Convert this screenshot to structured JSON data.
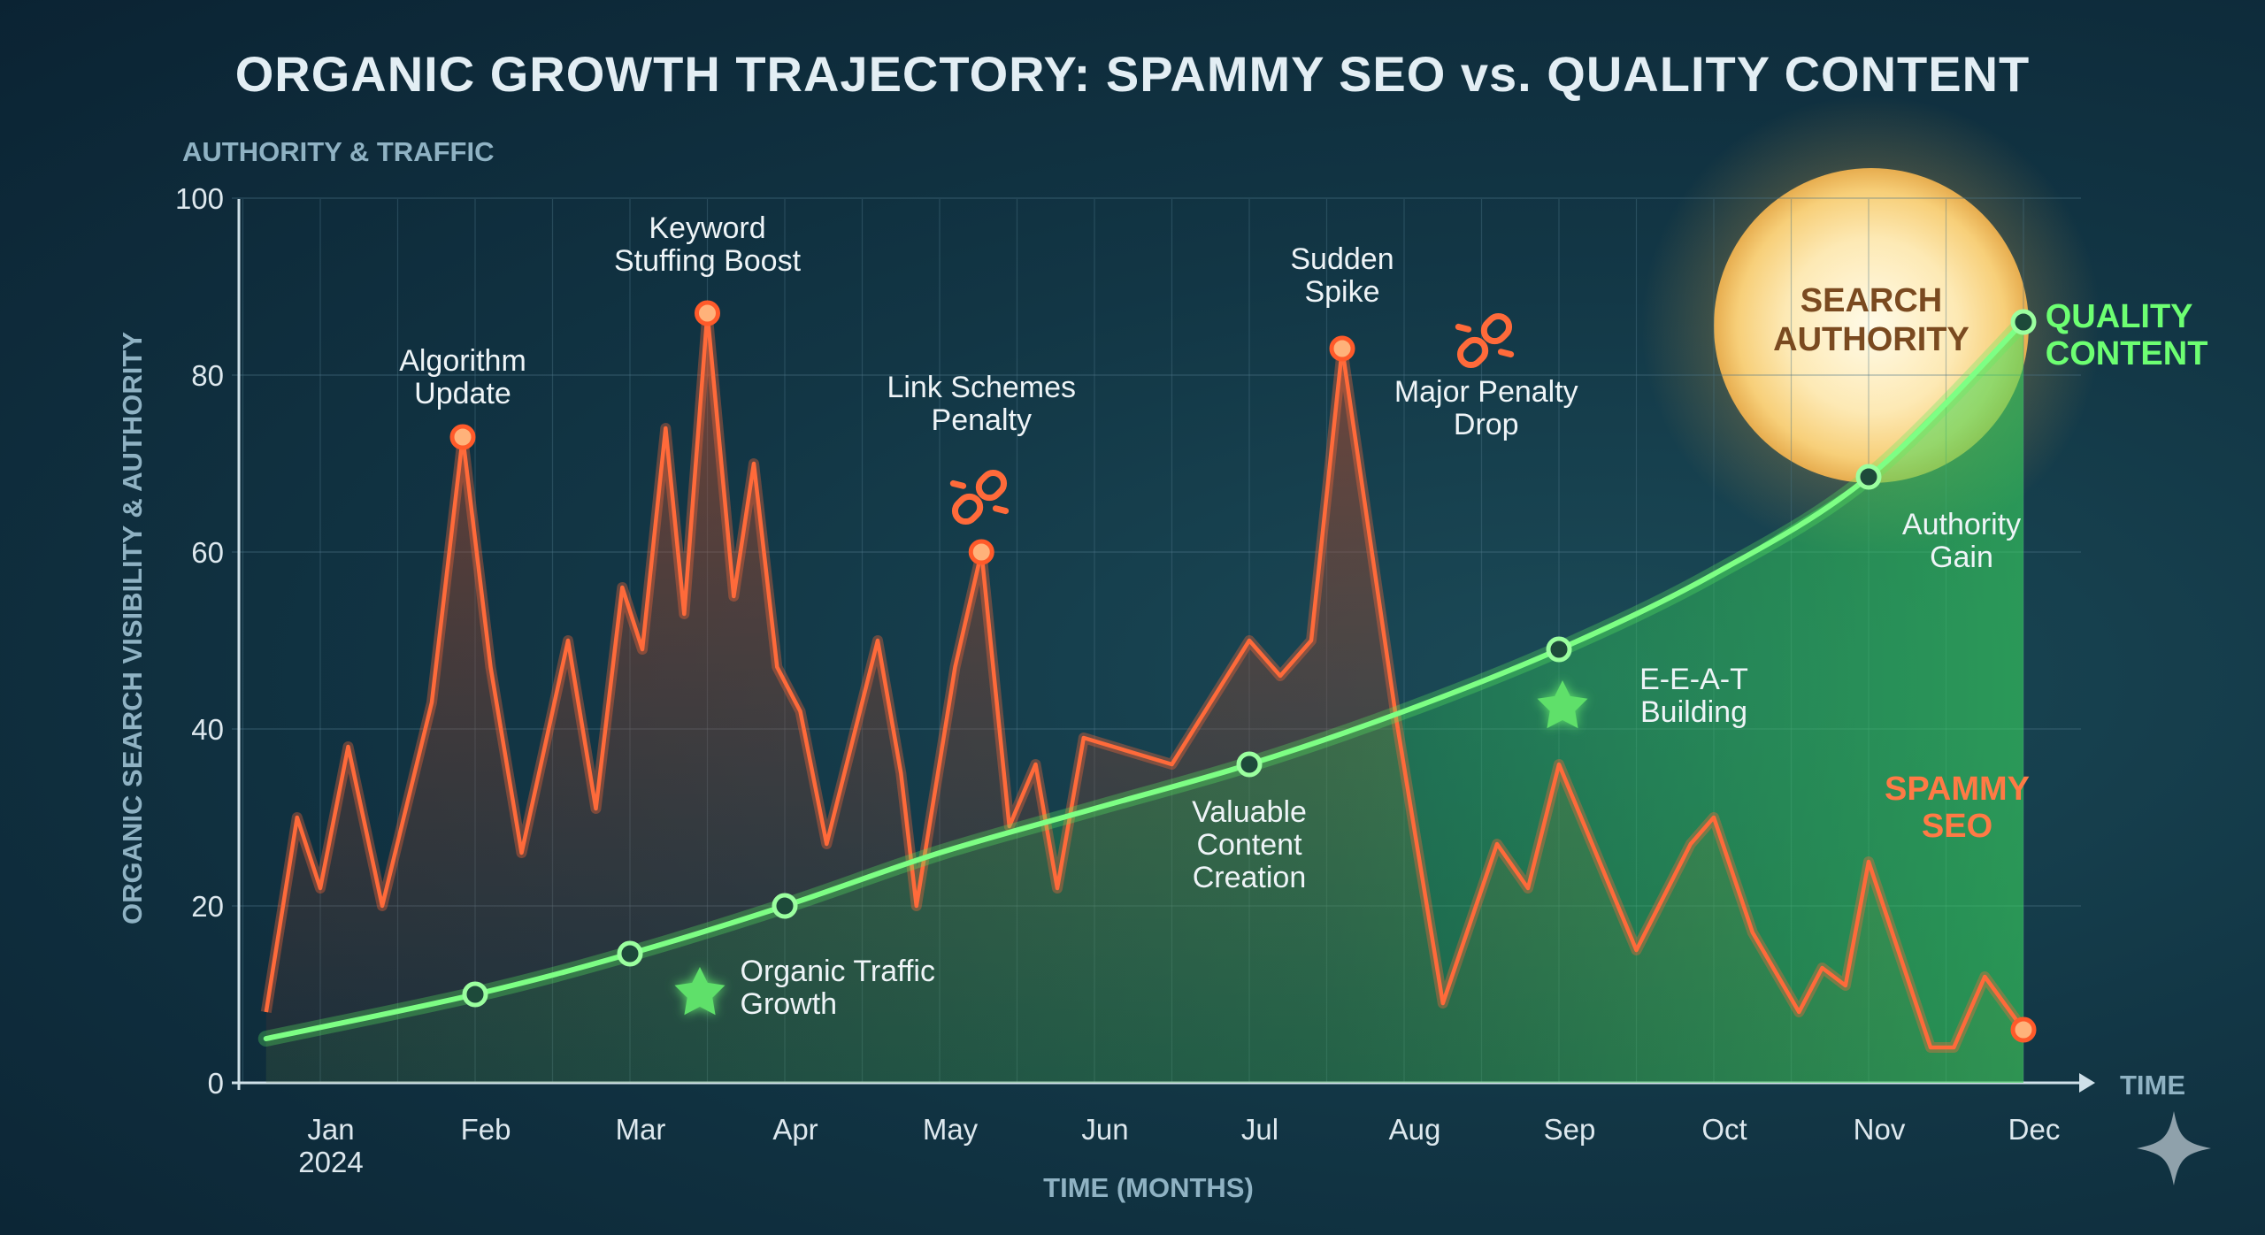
{
  "title": "ORGANIC GROWTH TRAJECTORY: SPAMMY SEO vs. QUALITY CONTENT",
  "axis_top_label": "AUTHORITY & TRAFFIC",
  "y_axis_label": "ORGANIC SEARCH VISIBILITY & AUTHORITY",
  "x_axis_label": "TIME (MONTHS)",
  "x_end_label": "TIME",
  "colors": {
    "spammy": "#ff6a3a",
    "quality": "#58f060",
    "star": "#5ee06a",
    "icon": "#ff6a3a"
  },
  "icons": [
    "broken-link-icon",
    "broken-link-icon",
    "star-icon",
    "star-icon",
    "sparkle-logo-icon"
  ],
  "chart_data": {
    "type": "line",
    "title": "ORGANIC GROWTH TRAJECTORY: SPAMMY SEO vs. QUALITY CONTENT",
    "xlabel": "TIME (MONTHS)",
    "ylabel": "ORGANIC SEARCH VISIBILITY & AUTHORITY",
    "ylim": [
      0,
      100
    ],
    "y_ticks": [
      0,
      20,
      40,
      60,
      80,
      100
    ],
    "x_ticks": [
      {
        "m": 0,
        "label": "Jan",
        "sub": "2024"
      },
      {
        "m": 1,
        "label": "Feb"
      },
      {
        "m": 2,
        "label": "Mar"
      },
      {
        "m": 3,
        "label": "Apr"
      },
      {
        "m": 4,
        "label": "May"
      },
      {
        "m": 5,
        "label": "Jun"
      },
      {
        "m": 6,
        "label": "Jul"
      },
      {
        "m": 7,
        "label": "Aug"
      },
      {
        "m": 8,
        "label": "Sep"
      },
      {
        "m": 9,
        "label": "Oct"
      },
      {
        "m": 10,
        "label": "Nov"
      },
      {
        "m": 11,
        "label": "Dec"
      }
    ],
    "grid": true,
    "series": [
      {
        "name": "SPAMMY SEO",
        "points": [
          [
            -0.35,
            8
          ],
          [
            -0.15,
            30
          ],
          [
            0,
            22
          ],
          [
            0.18,
            38
          ],
          [
            0.4,
            20
          ],
          [
            0.72,
            43
          ],
          [
            0.92,
            73
          ],
          [
            1.1,
            47
          ],
          [
            1.3,
            26
          ],
          [
            1.6,
            50
          ],
          [
            1.78,
            31
          ],
          [
            1.95,
            56
          ],
          [
            2.08,
            49
          ],
          [
            2.23,
            74
          ],
          [
            2.35,
            53
          ],
          [
            2.5,
            87
          ],
          [
            2.67,
            55
          ],
          [
            2.8,
            70
          ],
          [
            2.95,
            47
          ],
          [
            3.1,
            42
          ],
          [
            3.27,
            27
          ],
          [
            3.6,
            50
          ],
          [
            3.75,
            35
          ],
          [
            3.85,
            20
          ],
          [
            4.1,
            47
          ],
          [
            4.27,
            60
          ],
          [
            4.45,
            29
          ],
          [
            4.62,
            36
          ],
          [
            4.76,
            22
          ],
          [
            4.93,
            39
          ],
          [
            5.5,
            36
          ],
          [
            6,
            50
          ],
          [
            6.2,
            46
          ],
          [
            6.4,
            50
          ],
          [
            6.6,
            83
          ],
          [
            6.95,
            41
          ],
          [
            7.25,
            9
          ],
          [
            7.6,
            27
          ],
          [
            7.8,
            22
          ],
          [
            8,
            36
          ],
          [
            8.5,
            15
          ],
          [
            8.85,
            27
          ],
          [
            9,
            30
          ],
          [
            9.25,
            17
          ],
          [
            9.55,
            8
          ],
          [
            9.7,
            13
          ],
          [
            9.85,
            11
          ],
          [
            10,
            25
          ],
          [
            10.4,
            4
          ],
          [
            10.55,
            4
          ],
          [
            10.75,
            12
          ],
          [
            11,
            6
          ]
        ],
        "markers": [
          [
            0.92,
            73
          ],
          [
            2.5,
            87
          ],
          [
            4.27,
            60
          ],
          [
            6.6,
            83
          ],
          [
            11,
            6
          ]
        ]
      },
      {
        "name": "QUALITY CONTENT",
        "points": [
          [
            -0.35,
            5
          ],
          [
            1,
            10
          ],
          [
            2,
            14.6
          ],
          [
            3,
            20
          ],
          [
            4,
            26
          ],
          [
            5,
            31
          ],
          [
            6,
            36
          ],
          [
            7,
            42
          ],
          [
            8,
            49
          ],
          [
            9,
            57.5
          ],
          [
            10,
            68.5
          ],
          [
            11,
            86
          ]
        ],
        "markers": [
          [
            1,
            10
          ],
          [
            2,
            14.6
          ],
          [
            3,
            20
          ],
          [
            6,
            36
          ],
          [
            8,
            49
          ],
          [
            10,
            68.5
          ],
          [
            11,
            86
          ]
        ]
      }
    ],
    "annotations": [
      {
        "lines": [
          "Algorithm",
          "Update"
        ],
        "m": 0.92,
        "v": 80.5
      },
      {
        "lines": [
          "Keyword",
          "Stuffing Boost"
        ],
        "m": 2.5,
        "v": 95.5
      },
      {
        "lines": [
          "Link Schemes",
          "Penalty"
        ],
        "m": 4.27,
        "v": 77.5
      },
      {
        "lines": [
          "Sudden",
          "Spike"
        ],
        "m": 6.6,
        "v": 92
      },
      {
        "lines": [
          "Major Penalty",
          "Drop"
        ],
        "m": 7.53,
        "v": 77
      },
      {
        "lines": [
          "Authority",
          "Gain"
        ],
        "m": 10.6,
        "v": 62
      },
      {
        "lines": [
          "E-E-A-T",
          "Building"
        ],
        "m": 8.7,
        "v": 44.5
      },
      {
        "lines": [
          "Valuable",
          "Content",
          "Creation"
        ],
        "m": 6,
        "v": 29.5
      },
      {
        "lines": [
          "Organic Traffic",
          "Growth"
        ],
        "m": 3.42,
        "v": 11.5
      }
    ],
    "series_labels": [
      {
        "lines": [
          "SPAMMY",
          "SEO"
        ],
        "series": 0,
        "m": 10.4,
        "v": 32
      },
      {
        "lines": [
          "QUALITY",
          "CONTENT"
        ],
        "series": 1,
        "m": 11.17,
        "v": 85
      }
    ],
    "callout": {
      "lines": [
        "SEARCH",
        "AUTHORITY"
      ],
      "m": 10,
      "v": 86
    }
  }
}
